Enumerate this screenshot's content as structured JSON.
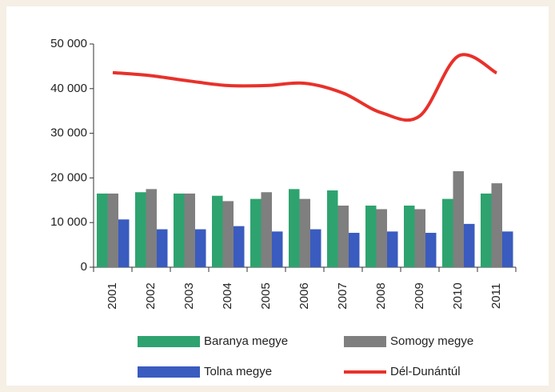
{
  "chart_data": {
    "type": "bar_line",
    "categories": [
      "2001",
      "2002",
      "2003",
      "2004",
      "2005",
      "2006",
      "2007",
      "2008",
      "2009",
      "2010",
      "2011"
    ],
    "series": [
      {
        "name": "Baranya megye",
        "color": "#2ea36f",
        "type": "bar",
        "values": [
          16500,
          16800,
          16500,
          16000,
          15300,
          17500,
          17200,
          13800,
          13800,
          15300,
          16500
        ]
      },
      {
        "name": "Somogy megye",
        "color": "#7f7f7f",
        "type": "bar",
        "values": [
          16500,
          17500,
          16500,
          14800,
          16800,
          15300,
          13800,
          13000,
          13000,
          21500,
          18800
        ]
      },
      {
        "name": "Tolna megye",
        "color": "#3a5bbf",
        "type": "bar",
        "values": [
          10700,
          8500,
          8500,
          9200,
          8000,
          8500,
          7700,
          8000,
          7700,
          9700,
          8000
        ]
      },
      {
        "name": "Dél-Dunántúl",
        "color": "#e8312b",
        "type": "line",
        "values": [
          43600,
          42900,
          41700,
          40700,
          40700,
          41200,
          39000,
          34600,
          33900,
          47300,
          43500
        ]
      }
    ],
    "ylim": [
      0,
      50000
    ],
    "yticks": [
      0,
      {
        "value": 10000,
        "label": "10 000"
      },
      {
        "value": 20000,
        "label": "20 000"
      },
      {
        "value": 30000,
        "label": "30 000"
      },
      {
        "value": 40000,
        "label": "40 000"
      },
      {
        "value": 50000,
        "label": "50 000"
      }
    ]
  }
}
